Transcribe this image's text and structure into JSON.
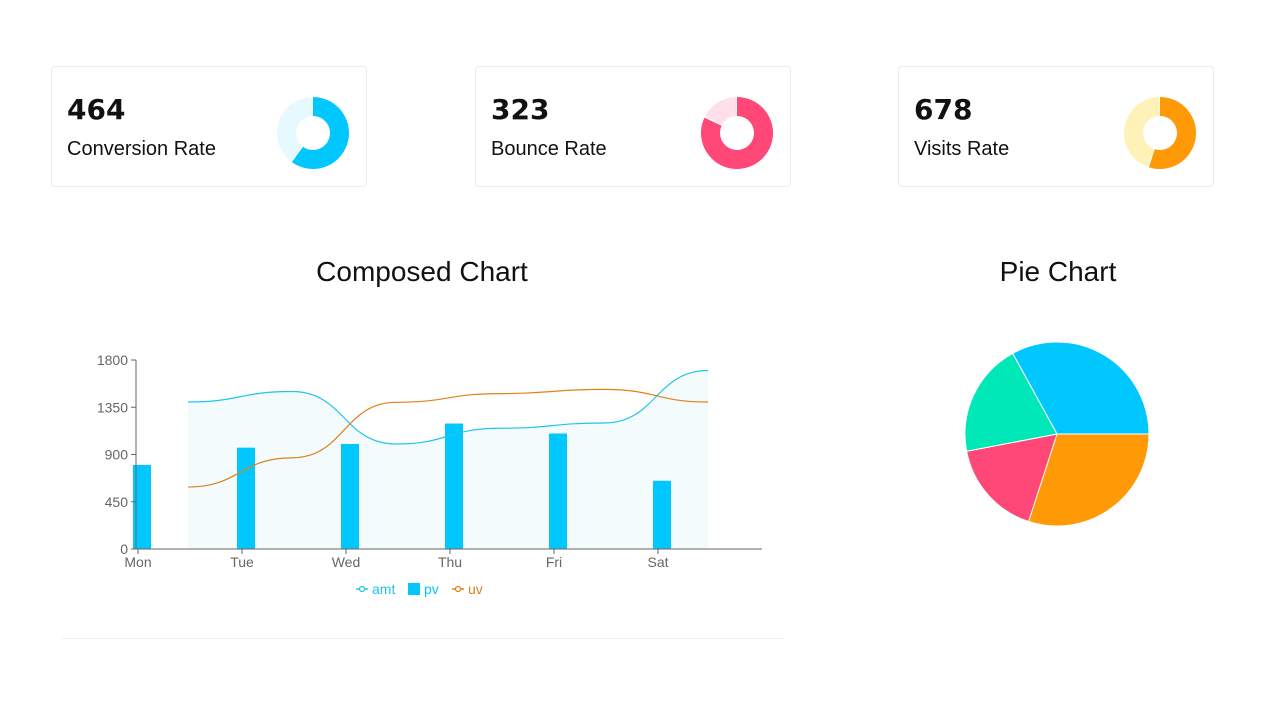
{
  "cards": [
    {
      "value": "464",
      "label": "Conversion Rate",
      "colors": {
        "main": "#00c8ff",
        "rest": "#e5f9ff"
      },
      "fraction": 0.6
    },
    {
      "value": "323",
      "label": "Bounce Rate",
      "colors": {
        "main": "#ff4778",
        "rest": "#ffe0ea"
      },
      "fraction": 0.82
    },
    {
      "value": "678",
      "label": "Visits Rate",
      "colors": {
        "main": "#ff9a06",
        "rest": "#fff2b8"
      },
      "fraction": 0.55
    }
  ],
  "composed": {
    "title": "Composed Chart",
    "chart_data": {
      "type": "bar",
      "categories": [
        "Mon",
        "Tue",
        "Wed",
        "Thu",
        "Fri",
        "Sat"
      ],
      "ylim": [
        0,
        1800
      ],
      "yticks": [
        "0",
        "450",
        "900",
        "1350",
        "1800"
      ],
      "series": [
        {
          "name": "amt",
          "kind": "area",
          "color": "#1fc5ea",
          "values": [
            1400,
            1500,
            1000,
            1150,
            1200,
            1700
          ]
        },
        {
          "name": "pv",
          "kind": "bar",
          "color": "#00c8ff",
          "values": [
            800,
            965,
            1000,
            1195,
            1100,
            650
          ]
        },
        {
          "name": "uv",
          "kind": "line",
          "color": "#e0811a",
          "values": [
            590,
            868,
            1397,
            1480,
            1520,
            1400
          ]
        }
      ],
      "legend": "bottom"
    }
  },
  "pie": {
    "title": "Pie Chart",
    "chart_data": {
      "type": "pie",
      "slices": [
        {
          "color": "#00c8ff",
          "value": 33
        },
        {
          "color": "#ff9a06",
          "value": 30
        },
        {
          "color": "#ff4778",
          "value": 17
        },
        {
          "color": "#00e8b8",
          "value": 20
        }
      ]
    }
  }
}
